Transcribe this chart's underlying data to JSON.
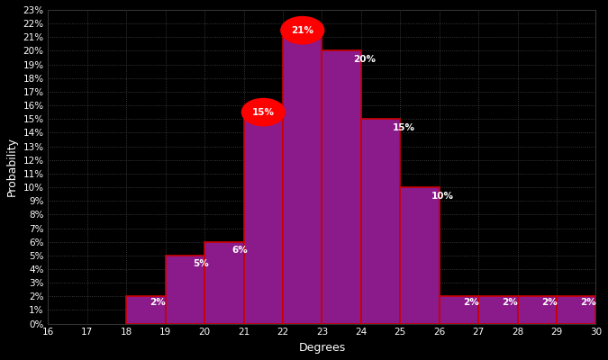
{
  "degrees": [
    18,
    19,
    20,
    21,
    22,
    23,
    24,
    25,
    26,
    27,
    28,
    29
  ],
  "values": [
    2,
    5,
    6,
    15,
    21,
    20,
    15,
    10,
    2,
    2,
    2,
    2
  ],
  "bar_color": "#8B1A8B",
  "bar_edge_color": "#CC0000",
  "background_color": "#000000",
  "text_color": "#FFFFFF",
  "grid_color": "#666666",
  "xlabel": "Degrees",
  "ylabel": "Probability",
  "xlim": [
    16,
    30
  ],
  "ylim": [
    0,
    23
  ],
  "yticks": [
    0,
    1,
    2,
    3,
    4,
    5,
    6,
    7,
    8,
    9,
    10,
    11,
    12,
    13,
    14,
    15,
    16,
    17,
    18,
    19,
    20,
    21,
    22,
    23
  ],
  "red_circle_degrees": [
    21,
    22
  ],
  "label_fontsize": 7.5,
  "axis_label_fontsize": 9,
  "tick_fontsize": 7.5,
  "bar_labels": {
    "18": {
      "text": "2%",
      "xoff": 0.3,
      "yoff": -0.4,
      "ha": "left"
    },
    "19": {
      "text": "5%",
      "xoff": 0.3,
      "yoff": -0.4,
      "ha": "left"
    },
    "20": {
      "text": "6%",
      "xoff": 0.3,
      "yoff": -0.4,
      "ha": "left"
    },
    "23": {
      "text": "20%",
      "xoff": 0.3,
      "yoff": -0.4,
      "ha": "left"
    },
    "24": {
      "text": "15%",
      "xoff": 0.3,
      "yoff": -0.4,
      "ha": "left"
    },
    "25": {
      "text": "10%",
      "xoff": 0.3,
      "yoff": -0.4,
      "ha": "left"
    },
    "26": {
      "text": "2%",
      "xoff": 0.3,
      "yoff": -0.4,
      "ha": "left"
    },
    "27": {
      "text": "2%",
      "xoff": 0.3,
      "yoff": -0.4,
      "ha": "left"
    },
    "28": {
      "text": "2%",
      "xoff": 0.3,
      "yoff": -0.4,
      "ha": "left"
    }
  }
}
